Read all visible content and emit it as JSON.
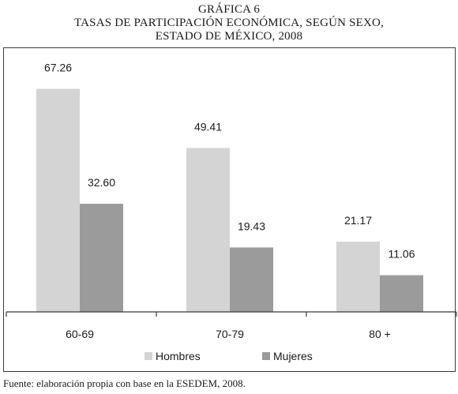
{
  "figure": {
    "label": "GRÁFICA 6",
    "title_line1": "TASAS DE PARTICIPACIÓN ECONÓMICA, SEGÚN SEXO,",
    "title_line2": "ESTADO DE MÉXICO, 2008",
    "source": "Fuente: elaboración propia con base en la ESEDEM, 2008."
  },
  "chart_data": {
    "type": "bar",
    "title": "TASAS DE PARTICIPACIÓN ECONÓMICA, SEGÚN SEXO, ESTADO DE MÉXICO, 2008",
    "categories": [
      "60-69",
      "70-79",
      "80 +"
    ],
    "series": [
      {
        "name": "Hombres",
        "values": [
          67.26,
          49.41,
          21.17
        ],
        "labels": [
          "67.26",
          "49.41",
          "21.17"
        ],
        "color": "#d4d4d4"
      },
      {
        "name": "Mujeres",
        "values": [
          32.6,
          19.43,
          11.06
        ],
        "labels": [
          "32.60",
          "19.43",
          "11.06"
        ],
        "color": "#9b9b9b"
      }
    ],
    "xlabel": "",
    "ylabel": "",
    "ylim": [
      0,
      80
    ],
    "grid": false,
    "legend": "bottom",
    "axis_color": "#3a3a3a"
  }
}
